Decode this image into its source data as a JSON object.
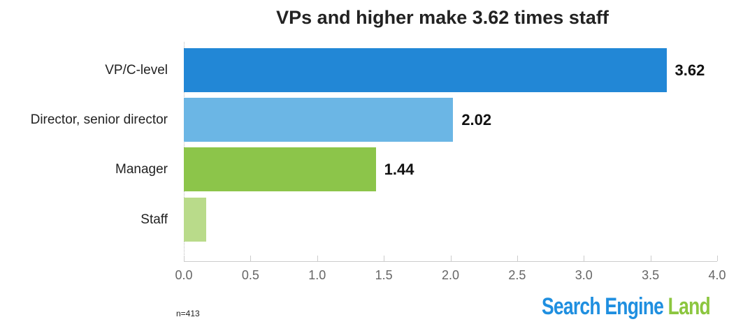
{
  "chart_data": {
    "type": "bar",
    "orientation": "horizontal",
    "title": "VPs and higher make 3.62 times staff",
    "categories": [
      "VP/C-level",
      "Director, senior director",
      "Manager",
      "Staff"
    ],
    "values": [
      3.62,
      2.02,
      1.44,
      0.17
    ],
    "data_labels": [
      "3.62",
      "2.02",
      "1.44",
      ""
    ],
    "colors": [
      "#2287d6",
      "#6bb6e5",
      "#8cc54a",
      "#b9db8a"
    ],
    "xlabel": "",
    "ylabel": "",
    "xlim": [
      0,
      4.0
    ],
    "xticks": [
      "0.0",
      "0.5",
      "1.0",
      "1.5",
      "2.0",
      "2.5",
      "3.0",
      "3.5",
      "4.0"
    ],
    "grid": false,
    "legend": null
  },
  "footer": {
    "sample_size": "n=413",
    "logo_part1": "Search Engine ",
    "logo_part2": "Land"
  }
}
